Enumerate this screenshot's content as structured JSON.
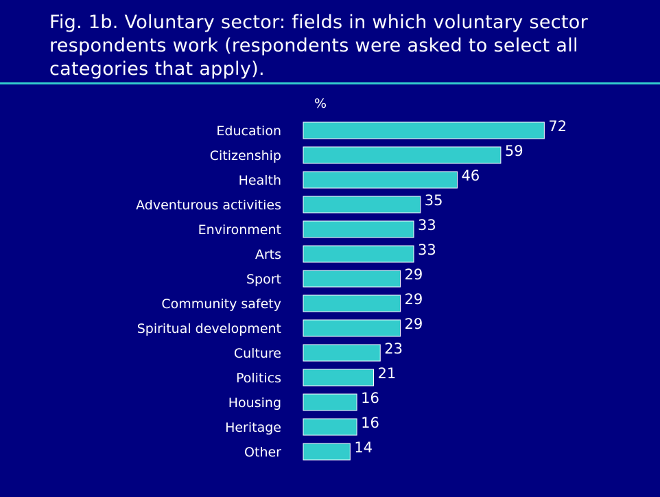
{
  "title": "Fig. 1b. Voluntary sector: fields in which voluntary sector respondents work (respondents were asked to select all categories that apply).",
  "colors": {
    "background": "#000080",
    "bar": "#33cccc",
    "bar_outline": "#ffffff",
    "rule": "#33cccc",
    "text": "#ffffff"
  },
  "chart_data": {
    "type": "bar",
    "orientation": "horizontal",
    "title": "Fig. 1b. Voluntary sector: fields in which voluntary sector respondents work (respondents were asked to select all categories that apply).",
    "unit_label": "%",
    "categories": [
      "Education",
      "Citizenship",
      "Health",
      "Adventurous activities",
      "Environment",
      "Arts",
      "Sport",
      "Community safety",
      "Spiritual development",
      "Culture",
      "Politics",
      "Housing",
      "Heritage",
      "Other"
    ],
    "values": [
      72,
      59,
      46,
      35,
      33,
      33,
      29,
      29,
      29,
      23,
      21,
      16,
      16,
      14
    ],
    "data_labels": true,
    "legend": "none",
    "grid": false
  }
}
